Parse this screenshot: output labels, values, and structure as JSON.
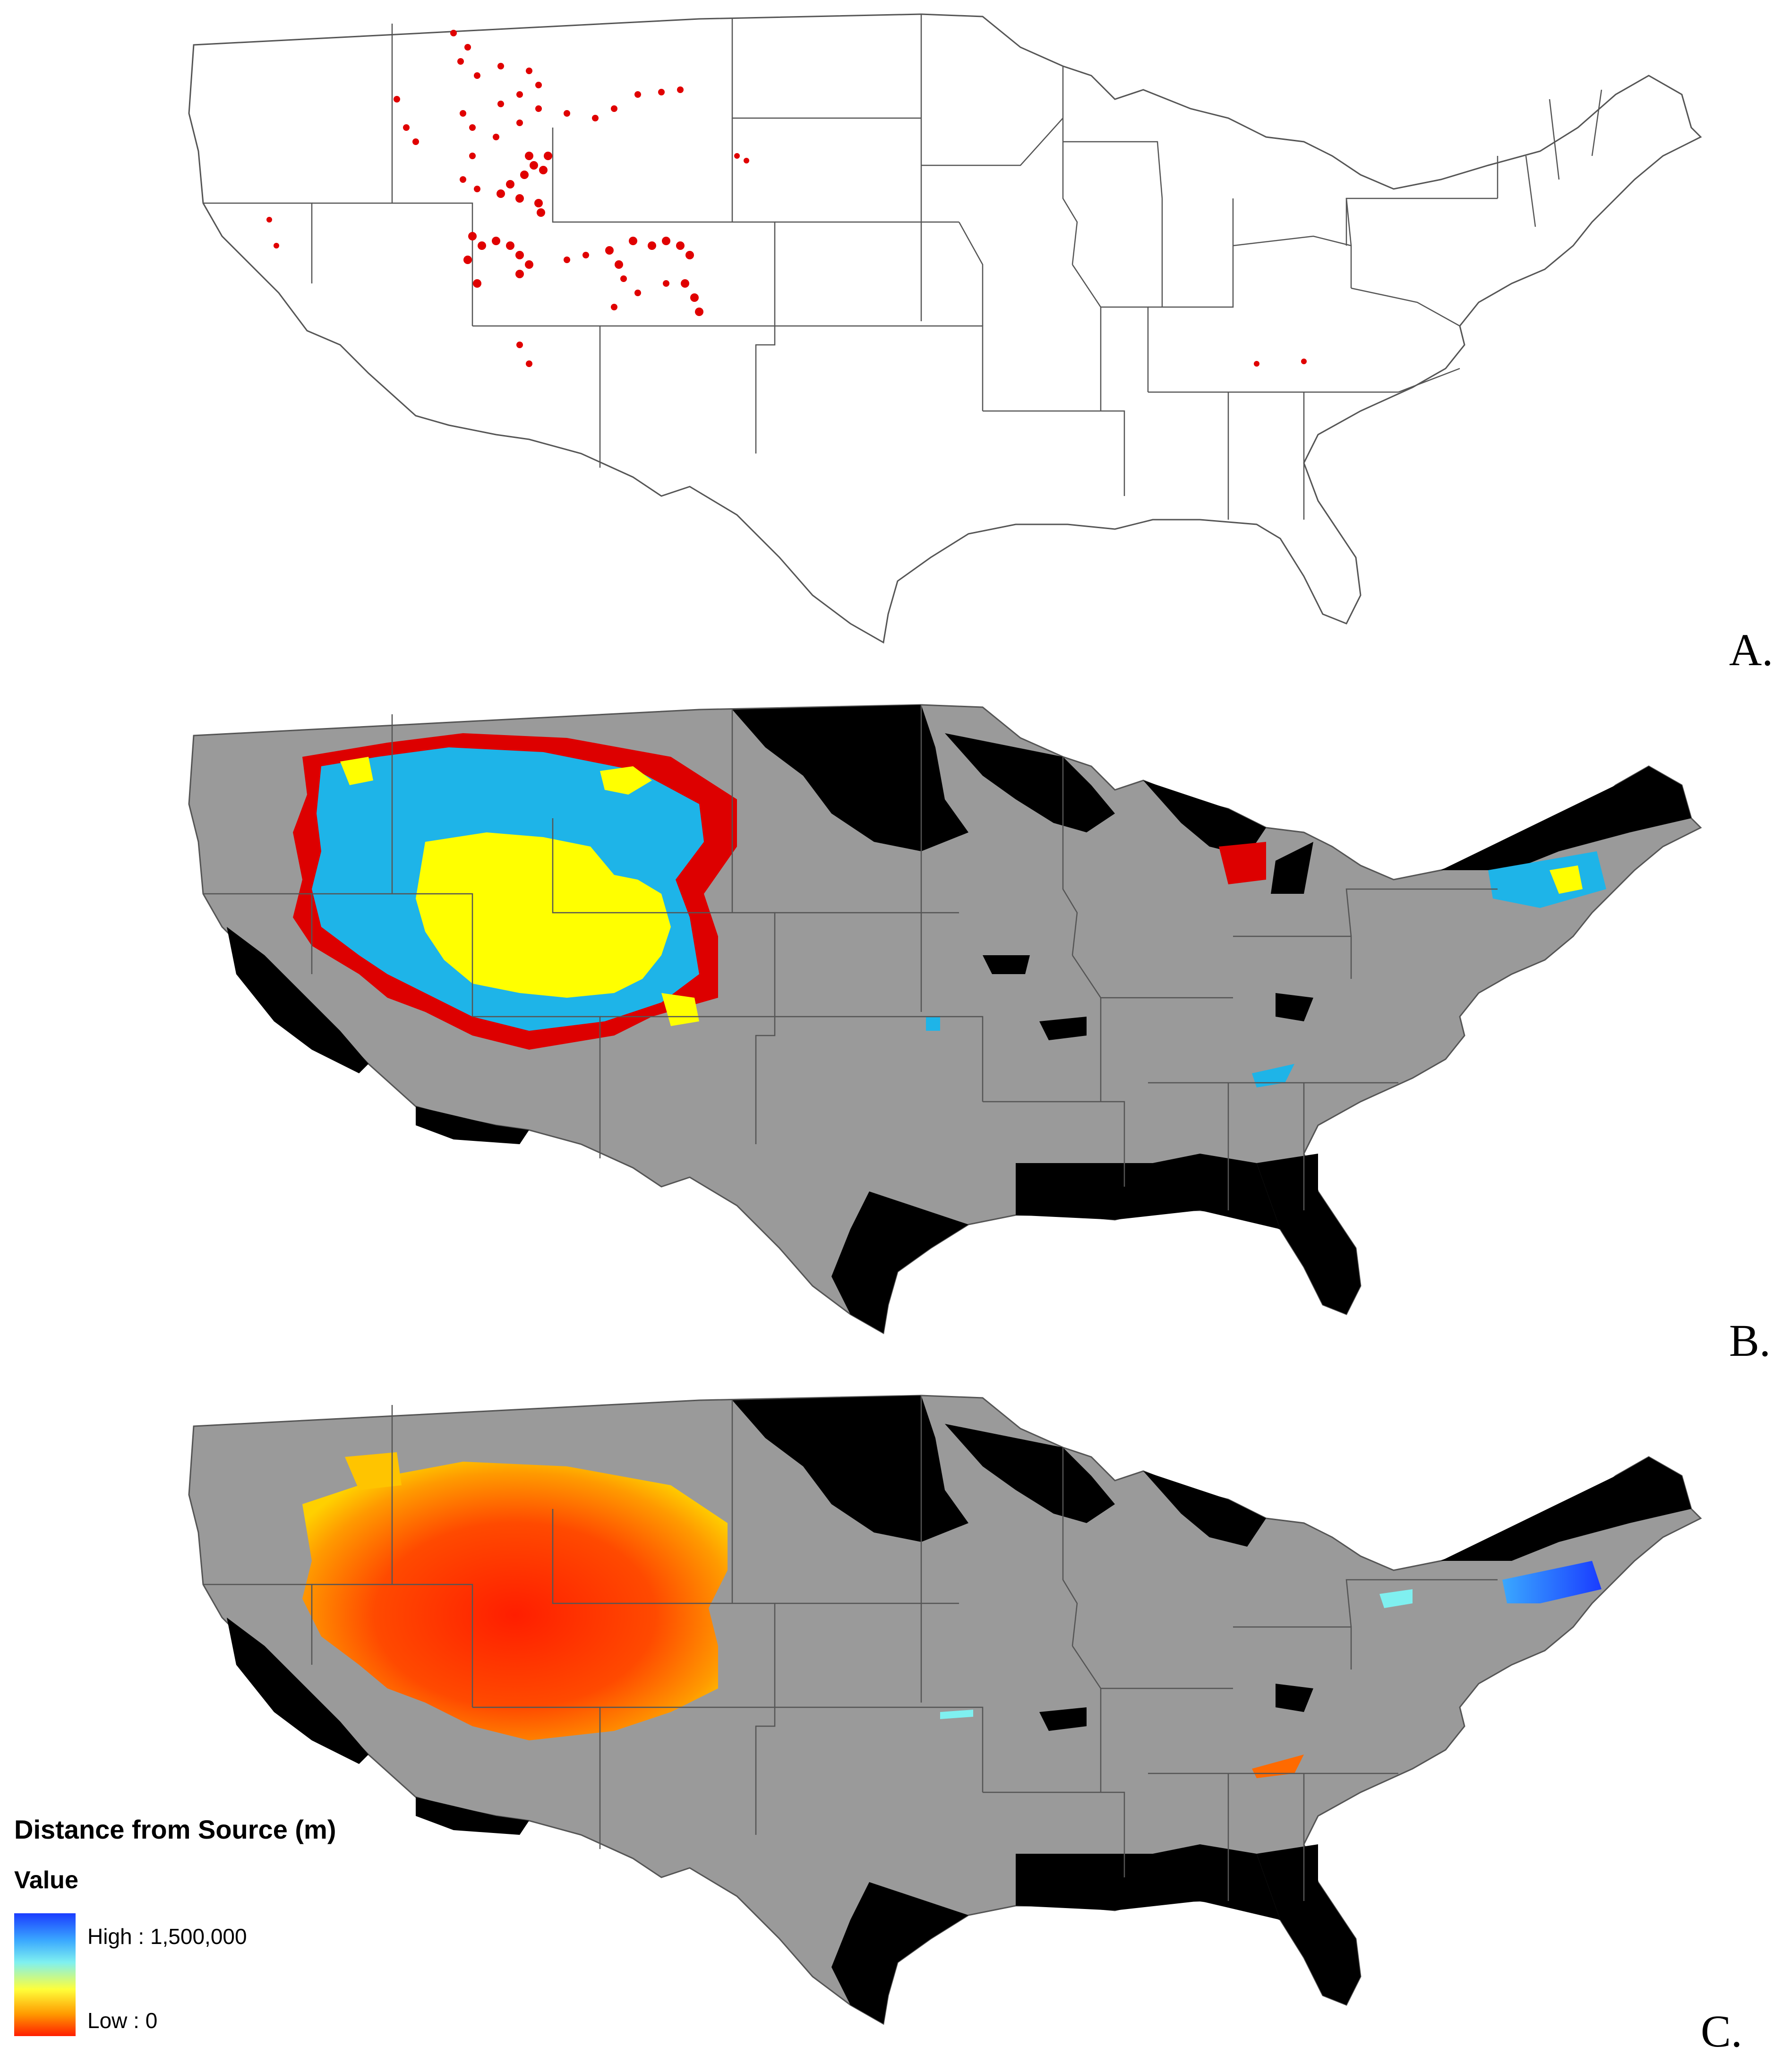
{
  "panels": {
    "a": {
      "label": "A."
    },
    "b": {
      "label": "B."
    },
    "c": {
      "label": "C."
    }
  },
  "legend": {
    "title": "Distance from Source (m)",
    "subtitle": "Value",
    "high_label": "High : 1,500,000",
    "low_label": "Low : 0",
    "high_value": 1500000,
    "low_value": 0,
    "ramp_colors": [
      "#1a3cff",
      "#3aa8ff",
      "#7ff0f0",
      "#ffff3a",
      "#ff9a00",
      "#ff1e00"
    ]
  },
  "colors": {
    "state_outline": "#555555",
    "land_a": "#ffffff",
    "land_bc": "#9a9a9a",
    "unsuitable": "#000000",
    "occurrence": "#e00000",
    "b_red": "#dd0000",
    "b_cyan": "#1eb4e8",
    "b_yellow": "#ffff00"
  }
}
